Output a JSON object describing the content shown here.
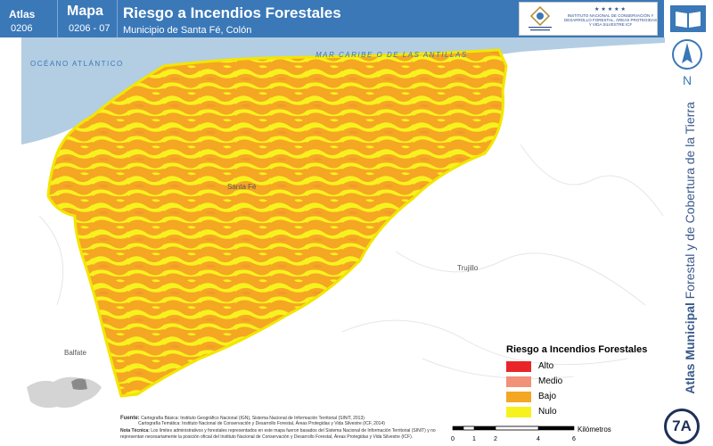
{
  "header": {
    "atlas_label": "Atlas",
    "atlas_code": "0206",
    "mapa_label": "Mapa",
    "mapa_code": "0206 - 07",
    "title": "Riesgo a Incendios Forestales",
    "subtitle": "Municipio de Santa Fé, Colón"
  },
  "logos": {
    "seal_text": "GOBIERNO DE LA REPÚBLICA DE HONDURAS",
    "stars": "★★★★★",
    "institution": "INSTITUTO NACIONAL DE CONSERVACIÓN Y DESARROLLO FORESTAL, ÁREAS PROTEGIDAS Y VIDA SILVESTRE ICF",
    "book_icon": "open-book-icon",
    "north_icon": "north-arrow-icon"
  },
  "north_label": "N",
  "side_title_bold": "Atlas Municipal",
  "side_title_rest": " Forestal y de Cobertura de la Tierra",
  "badge": "7A",
  "map": {
    "sea_labels": [
      "OCÉANO ATLÁNTICO",
      "MAR CARIBE O DE LAS ANTILLAS"
    ],
    "place_labels": [
      "Santa Fé",
      "Trujillo",
      "Balfate"
    ]
  },
  "legend": {
    "title": "Riesgo a Incendios Forestales",
    "items": [
      {
        "label": "Alto",
        "color": "#e8262a"
      },
      {
        "label": "Medio",
        "color": "#f29078"
      },
      {
        "label": "Bajo",
        "color": "#f5a623"
      },
      {
        "label": "Nulo",
        "color": "#f7f21e"
      }
    ]
  },
  "fuente": {
    "label": "Fuente:",
    "line1": "Cartografía Básica: Instituto Geográfico Nacional (IGN), Sistema Nacional de Información Territorial (SINIT, 2013)",
    "line2": "Cartografía Temática: Instituto Nacional de Conservación y Desarrollo Forestal, Áreas Protegidas y Vida Silvestre (ICF, 2014)",
    "note_label": "Nota Técnica:",
    "note": "Los límites administrativos y forestales representados en este mapa fueron basados del Sistema Nacional de Información Territorial (SINIT) y no representan necesariamente la posición oficial del Instituto Nacional de Conservación y Desarrollo Forestal, Áreas Protegidas y Vida Silvestre (ICF)."
  },
  "scale": {
    "ticks": [
      "0",
      "1",
      "2",
      "4",
      "6"
    ],
    "unit": "Kilómetros"
  }
}
